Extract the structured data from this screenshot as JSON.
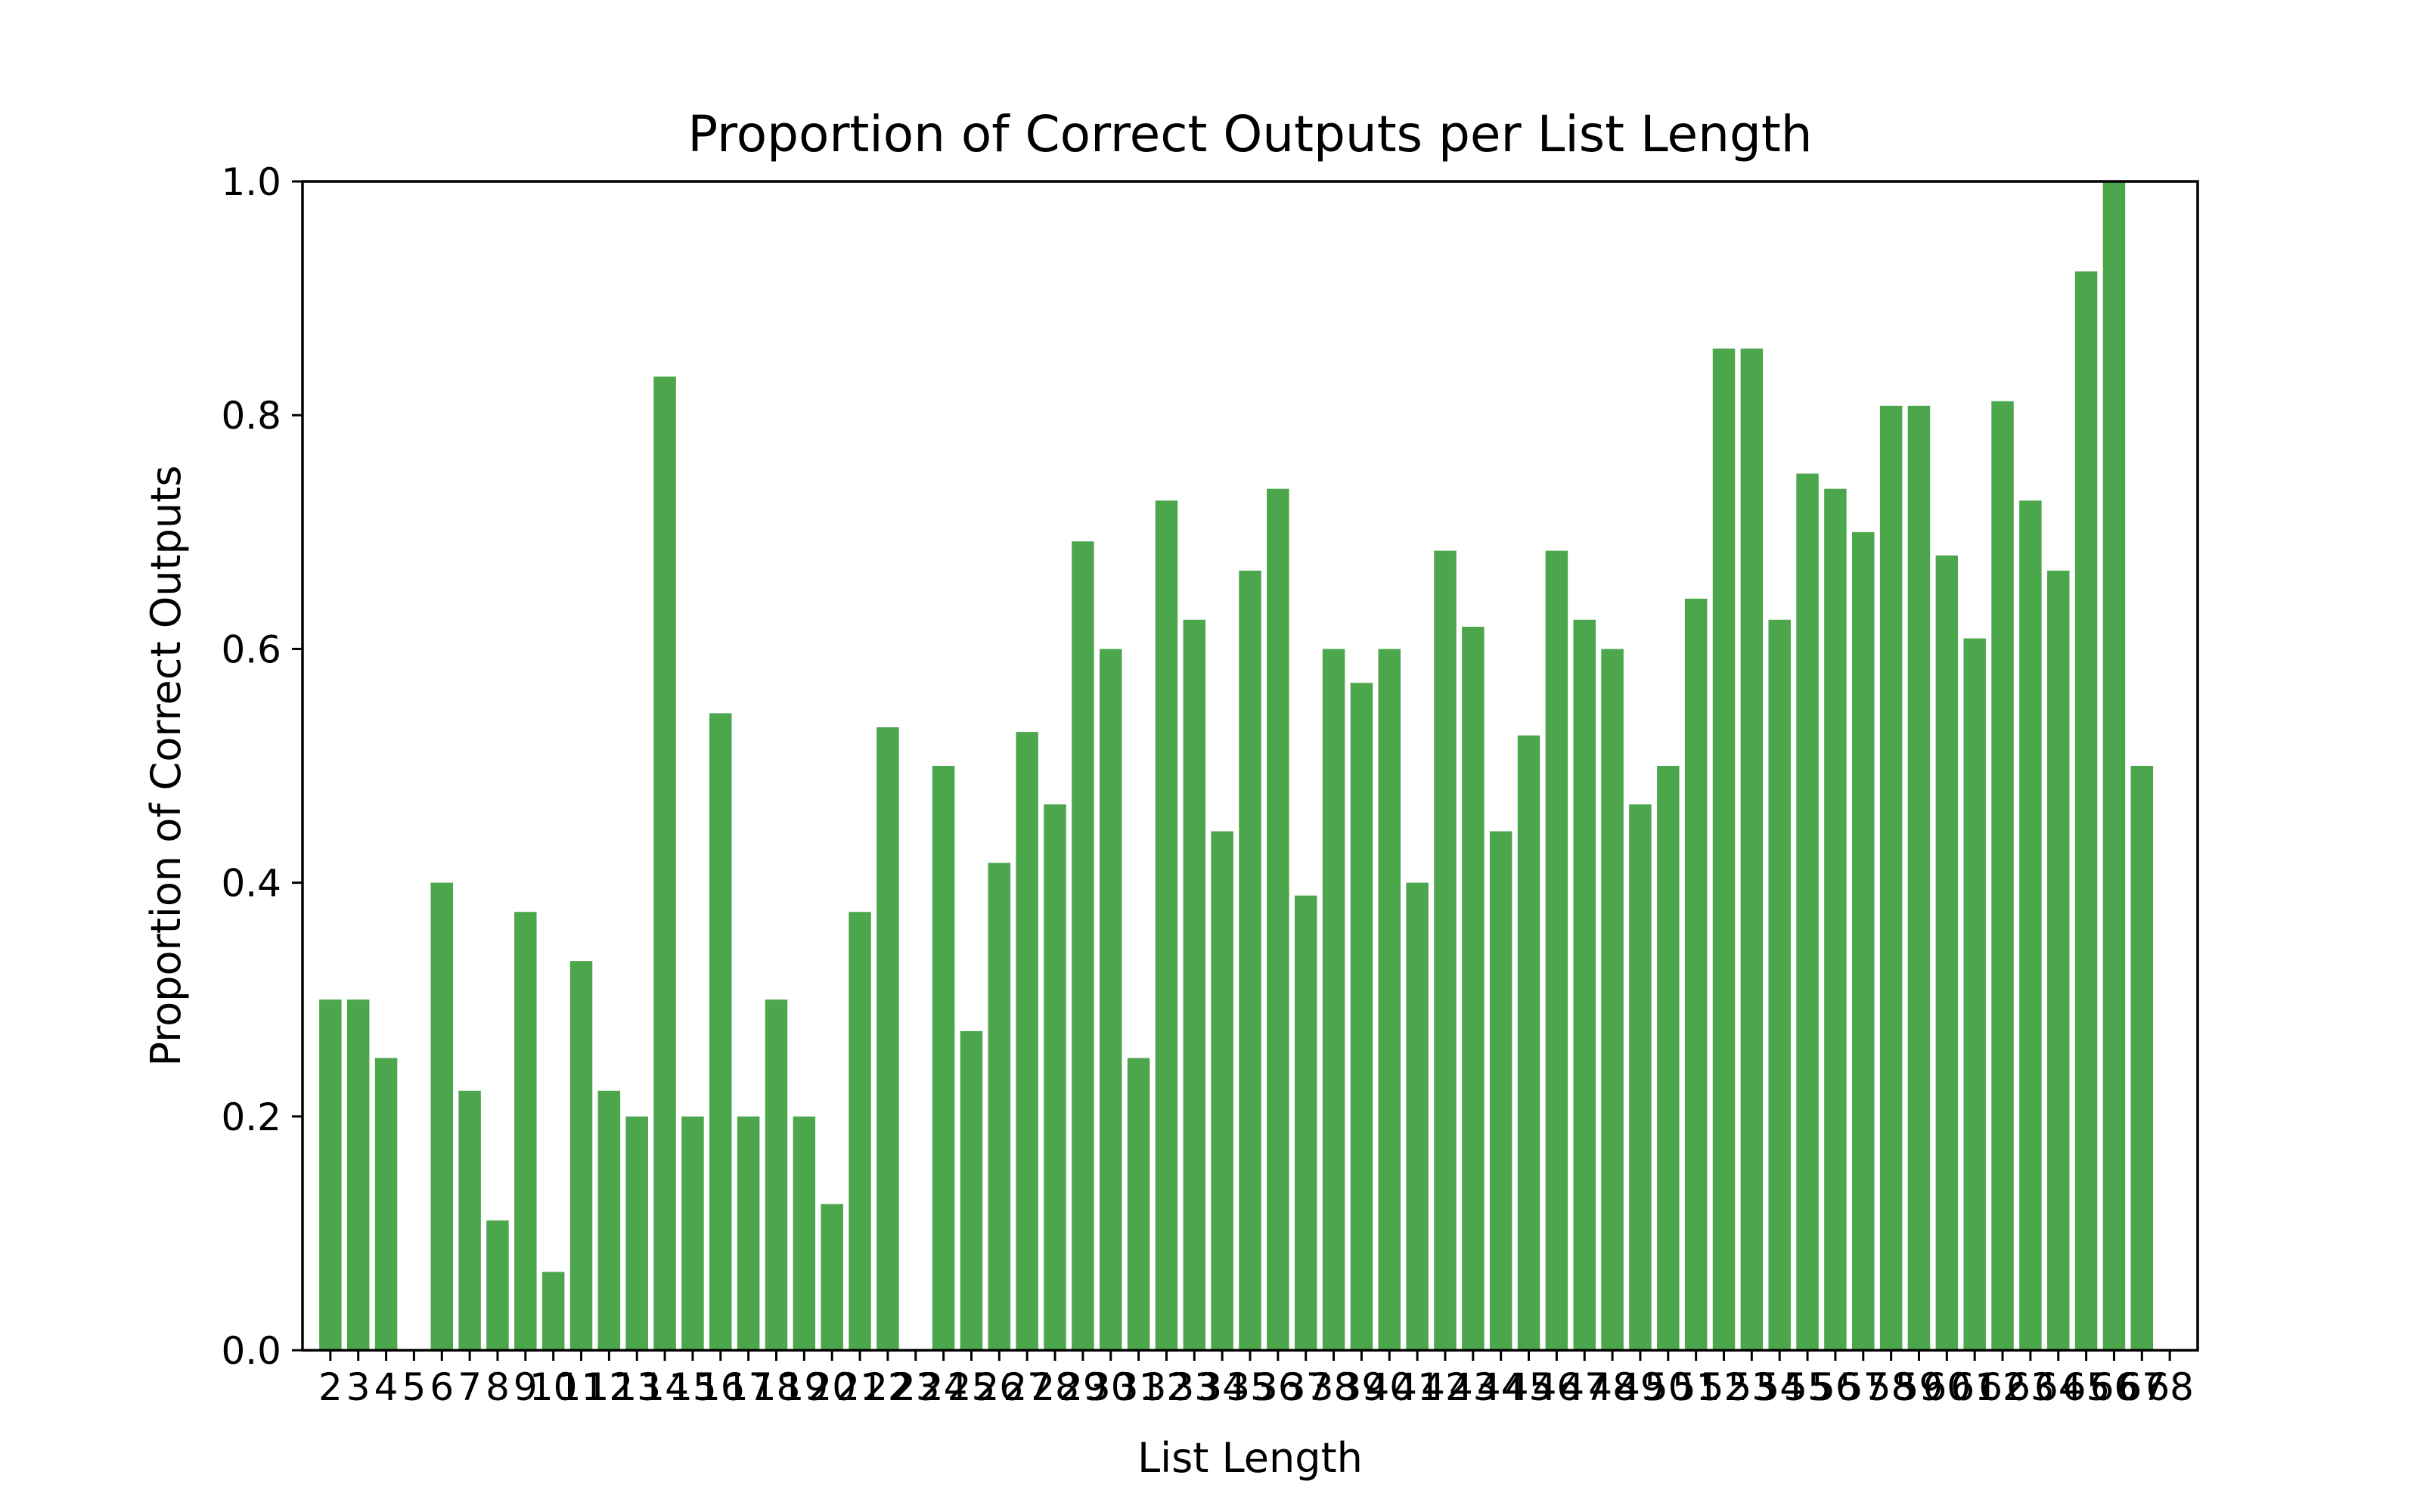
{
  "chart_data": {
    "type": "bar",
    "title": "Proportion of Correct Outputs per List Length",
    "xlabel": "List Length",
    "ylabel": "Proportion of Correct Outputs",
    "ylim": [
      0,
      1.0
    ],
    "xlim": [
      1.0,
      69.0
    ],
    "yticks": [
      "0.0",
      "0.2",
      "0.4",
      "0.6",
      "0.8",
      "1.0"
    ],
    "bar_color": "#4ca64c",
    "grid": false,
    "categories": [
      2,
      3,
      4,
      5,
      6,
      7,
      8,
      9,
      10,
      11,
      12,
      13,
      14,
      15,
      16,
      17,
      18,
      19,
      20,
      21,
      22,
      23,
      24,
      25,
      26,
      27,
      28,
      29,
      30,
      31,
      32,
      33,
      34,
      35,
      36,
      37,
      38,
      39,
      40,
      41,
      42,
      43,
      44,
      45,
      46,
      47,
      48,
      49,
      50,
      51,
      52,
      53,
      54,
      55,
      56,
      57,
      58,
      59,
      60,
      61,
      62,
      63,
      64,
      65,
      66,
      67,
      68
    ],
    "values": [
      0.3,
      0.3,
      0.25,
      0,
      0.4,
      0.222,
      0.111,
      0.375,
      0.067,
      0.333,
      0.222,
      0.2,
      0.833,
      0.2,
      0.545,
      0.2,
      0.3,
      0.2,
      0.125,
      0.375,
      0.533,
      0,
      0.5,
      0.273,
      0.417,
      0.529,
      0.467,
      0.692,
      0.6,
      0.25,
      0.727,
      0.625,
      0.444,
      0.667,
      0.737,
      0.389,
      0.6,
      0.571,
      0.6,
      0.4,
      0.684,
      0.619,
      0.444,
      0.526,
      0.684,
      0.625,
      0.6,
      0.467,
      0.5,
      0.643,
      0.857,
      0.857,
      0.625,
      0.75,
      0.737,
      0.7,
      0.808,
      0.808,
      0.68,
      0.609,
      0.812,
      0.727,
      0.667,
      0.923,
      1.0,
      0.5,
      0
    ]
  }
}
